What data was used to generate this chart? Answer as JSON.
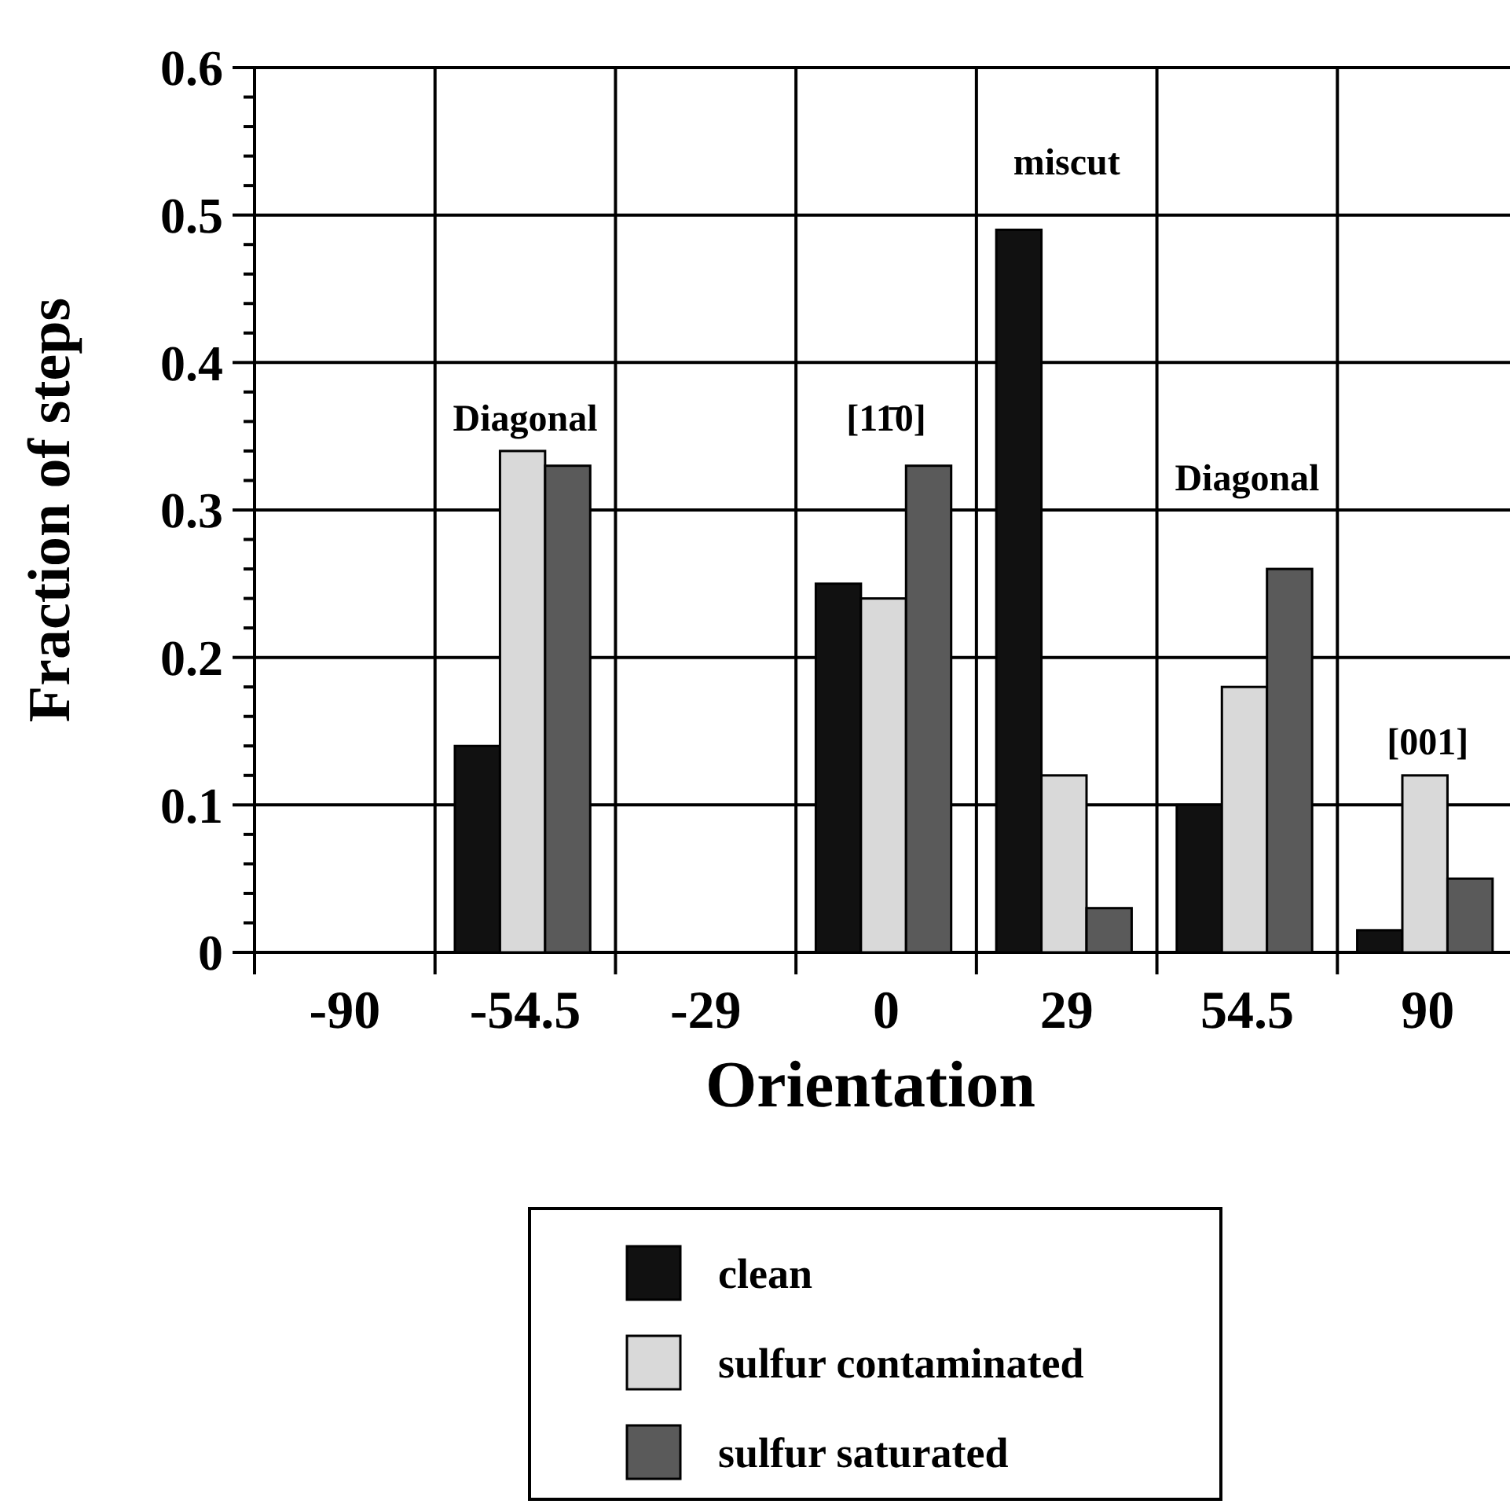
{
  "chart_data": {
    "type": "bar",
    "xlabel": "Orientation",
    "ylabel": "Fraction of steps",
    "categories": [
      "-90",
      "-54.5",
      "-29",
      "0",
      "29",
      "54.5",
      "90"
    ],
    "series": [
      {
        "name": "clean",
        "color": "#111111",
        "values": [
          0,
          0.14,
          0,
          0.25,
          0.49,
          0.1,
          0.015
        ]
      },
      {
        "name": "sulfur contaminated",
        "color": "#d9d9d9",
        "values": [
          0,
          0.34,
          0,
          0.24,
          0.12,
          0.18,
          0.12
        ]
      },
      {
        "name": "sulfur saturated",
        "color": "#5a5a5a",
        "values": [
          0,
          0.33,
          0,
          0.33,
          0.03,
          0.26,
          0.05
        ]
      }
    ],
    "ylim": [
      0,
      0.6
    ],
    "yticks": [
      0,
      {
        "value": 0.02,
        "label": null
      },
      {
        "value": 0.04,
        "label": null
      },
      {
        "value": 0.06,
        "label": null
      },
      {
        "value": 0.08,
        "label": null
      },
      0.1,
      {
        "value": 0.12,
        "label": null
      },
      {
        "value": 0.14,
        "label": null
      },
      {
        "value": 0.16,
        "label": null
      },
      {
        "value": 0.18,
        "label": null
      },
      0.2,
      {
        "value": 0.22,
        "label": null
      },
      {
        "value": 0.24,
        "label": null
      },
      {
        "value": 0.26,
        "label": null
      },
      {
        "value": 0.28,
        "label": null
      },
      0.3,
      {
        "value": 0.32,
        "label": null
      },
      {
        "value": 0.34,
        "label": null
      },
      {
        "value": 0.36,
        "label": null
      },
      {
        "value": 0.38,
        "label": null
      },
      0.4,
      {
        "value": 0.42,
        "label": null
      },
      {
        "value": 0.44,
        "label": null
      },
      {
        "value": 0.46,
        "label": null
      },
      {
        "value": 0.48,
        "label": null
      },
      0.5,
      {
        "value": 0.52,
        "label": null
      },
      {
        "value": 0.54,
        "label": null
      },
      {
        "value": 0.56,
        "label": null
      },
      {
        "value": 0.58,
        "label": null
      },
      0.6
    ],
    "grid": true,
    "legend": "bottom",
    "annotations": [
      "Diagonal",
      "[11̄0]",
      "miscut",
      "Diagonal",
      "[001]"
    ]
  }
}
